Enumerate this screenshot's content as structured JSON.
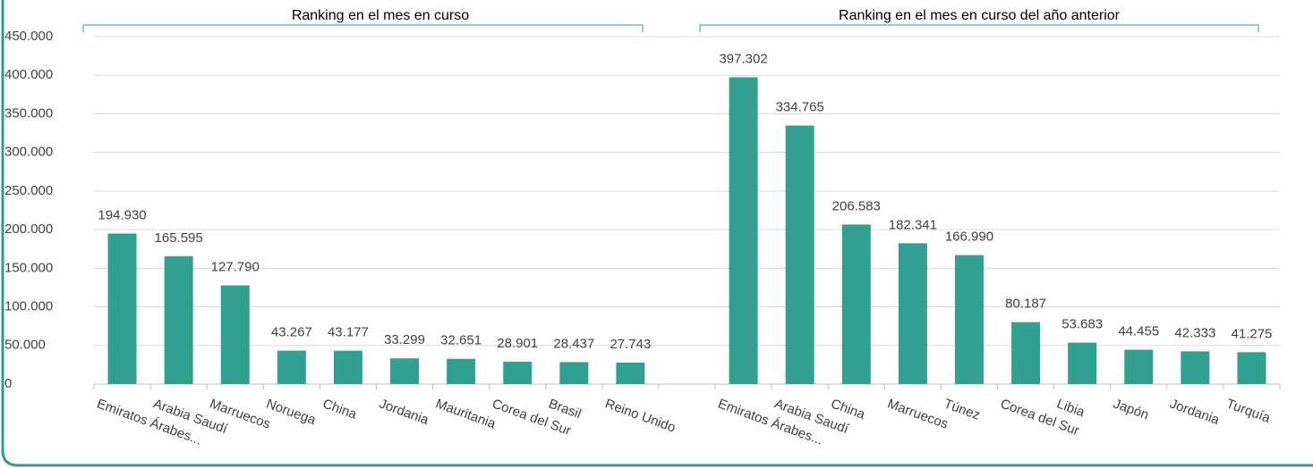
{
  "chart_data": {
    "type": "bar",
    "annotations": [
      "Ranking en el mes en curso",
      "Ranking en el mes en curso del año anterior"
    ],
    "categories": [
      "Emiratos Árabes...",
      "Arabia Saudí",
      "Marruecos",
      "Noruega",
      "China",
      "Jordania",
      "Mauritania",
      "Corea del Sur",
      "Brasil",
      "Reino Unido",
      null,
      "Emiratos Árabes...",
      "Arabia Saudí",
      "China",
      "Marruecos",
      "Túnez",
      "Corea del Sur",
      "Libia",
      "Japón",
      "Jordania",
      "Turquía"
    ],
    "values": [
      194930,
      165595,
      127790,
      43267,
      43177,
      33299,
      32651,
      28901,
      28437,
      27743,
      null,
      397302,
      334765,
      206583,
      182341,
      166990,
      80187,
      53683,
      44455,
      42333,
      41275
    ],
    "value_labels": [
      "194.930",
      "165.595",
      "127.790",
      "43.267",
      "43.177",
      "33.299",
      "32.651",
      "28.901",
      "28.437",
      "27.743",
      null,
      "397.302",
      "334.765",
      "206.583",
      "182.341",
      "166.990",
      "80.187",
      "53.683",
      "44.455",
      "42.333",
      "41.275"
    ],
    "color": "#31a090",
    "ylim": [
      0,
      450000
    ],
    "yticks": [
      0,
      {
        "value": 50000,
        "label": "50.000"
      },
      {
        "value": 100000,
        "label": "100.000"
      },
      {
        "value": 150000,
        "label": "150.000"
      },
      {
        "value": 200000,
        "label": "200.000"
      },
      {
        "value": 250000,
        "label": "250.000"
      },
      {
        "value": 300000,
        "label": "300.000"
      },
      {
        "value": 350000,
        "label": "350.000"
      },
      {
        "value": 400000,
        "label": "400.000"
      },
      {
        "value": 450000,
        "label": "450.000"
      }
    ],
    "grid": true
  }
}
